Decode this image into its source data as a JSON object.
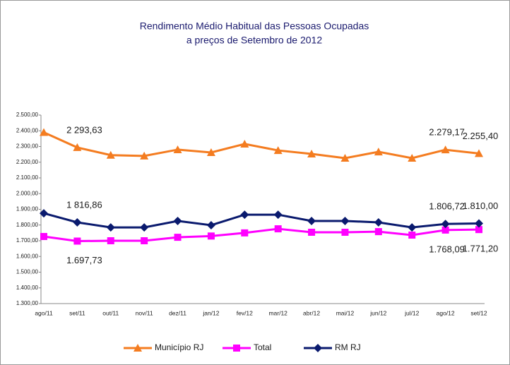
{
  "chart_data": {
    "type": "line",
    "title": "Rendimento Médio Habitual das Pessoas Ocupadas",
    "subtitle": "a preços de Setembro de 2012",
    "categories": [
      "ago/11",
      "set/11",
      "out/11",
      "nov/11",
      "dez/11",
      "jan/12",
      "fev/12",
      "mar/12",
      "abr/12",
      "mai/12",
      "jun/12",
      "jul/12",
      "ago/12",
      "set/12"
    ],
    "series": [
      {
        "name": "Município RJ",
        "color": "#f47c20",
        "marker": "triangle",
        "values": [
          2390,
          2293.63,
          2245,
          2240,
          2280,
          2262,
          2316,
          2275,
          2253,
          2226,
          2266,
          2226,
          2279.17,
          2255.4
        ],
        "value_labels": [
          null,
          "2 293,63",
          null,
          null,
          null,
          null,
          null,
          null,
          null,
          null,
          null,
          null,
          "2.279,17",
          "2.255,40"
        ]
      },
      {
        "name": "Total",
        "color": "#ff00ff",
        "marker": "square",
        "values": [
          1727,
          1697.73,
          1700,
          1700,
          1722,
          1730,
          1750,
          1776,
          1754,
          1754,
          1758,
          1736,
          1768.09,
          1771.2
        ],
        "value_labels": [
          null,
          "1.697,73",
          null,
          null,
          null,
          null,
          null,
          null,
          null,
          null,
          null,
          null,
          "1.768,09",
          "1.771,20"
        ]
      },
      {
        "name": "RM RJ",
        "color": "#0a1a6e",
        "marker": "diamond",
        "values": [
          1875,
          1816.86,
          1785,
          1785,
          1826,
          1799,
          1866,
          1866,
          1826,
          1826,
          1817,
          1785,
          1806.72,
          1810.0
        ],
        "value_labels": [
          null,
          "1 816,86",
          null,
          null,
          null,
          null,
          null,
          null,
          null,
          null,
          null,
          null,
          "1.806,72",
          "1.810,00"
        ]
      }
    ],
    "ylim": [
      1300,
      2500
    ],
    "yticks": [
      {
        "value": 1300,
        "label": "1.300,00"
      },
      {
        "value": 1400,
        "label": "1.400,00"
      },
      {
        "value": 1500,
        "label": "1.500,00"
      },
      {
        "value": 1600,
        "label": "1.600,00"
      },
      {
        "value": 1700,
        "label": "1.700,00"
      },
      {
        "value": 1800,
        "label": "1.800,00"
      },
      {
        "value": 1900,
        "label": "1.900,00"
      },
      {
        "value": 2000,
        "label": "2.000,00"
      },
      {
        "value": 2100,
        "label": "2.100,00"
      },
      {
        "value": 2200,
        "label": "2.200,00"
      },
      {
        "value": 2300,
        "label": "2.300,00"
      },
      {
        "value": 2400,
        "label": "2.400,00"
      },
      {
        "value": 2500,
        "label": "2.500,00"
      }
    ],
    "legend": "bottom"
  }
}
